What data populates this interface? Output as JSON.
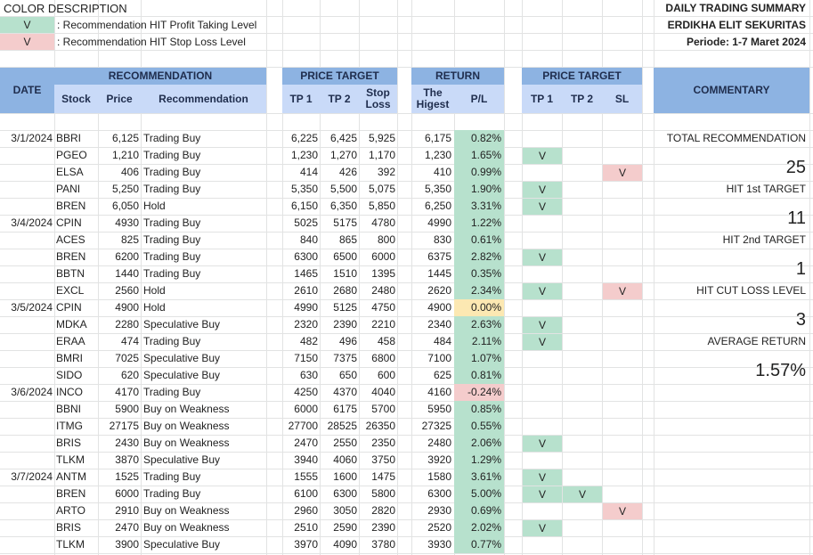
{
  "legend": {
    "title": "COLOR DESCRIPTION",
    "items": [
      {
        "symbol": "V",
        "text": ": Recommendation HIT Profit Taking Level",
        "color": "#b7e1cd"
      },
      {
        "symbol": "V",
        "text": ": Recommendation HIT Stop Loss Level",
        "color": "#f4cccc"
      }
    ]
  },
  "summary_header": {
    "title": "DAILY TRADING SUMMARY",
    "company": "ERDIKHA ELIT SEKURITAS",
    "period": "Periode:  1-7 Maret 2024"
  },
  "headers": {
    "date": "DATE",
    "recommendation_group": "RECOMMENDATION",
    "stock": "Stock",
    "price": "Price",
    "recommendation": "Recommendation",
    "price_target_group": "PRICE TARGET",
    "tp1": "TP 1",
    "tp2": "TP 2",
    "stop_loss": "Stop Loss",
    "return_group": "RETURN",
    "highest": "The Higest",
    "pl": "P/L",
    "hit_group": "PRICE TARGET",
    "hit_tp1": "TP 1",
    "hit_tp2": "TP 2",
    "hit_sl": "SL",
    "commentary": "COMMENTARY"
  },
  "rows": [
    {
      "date": "3/1/2024",
      "stock": "BBRI",
      "price": "6,125",
      "rec": "Trading Buy",
      "tp1": "6,225",
      "tp2": "6,425",
      "sl": "5,925",
      "highest": "6,175",
      "pl": "0.82%",
      "pl_class": "pos",
      "h1": "",
      "h2": "",
      "hs": ""
    },
    {
      "date": "",
      "stock": "PGEO",
      "price": "1,210",
      "rec": "Trading Buy",
      "tp1": "1,230",
      "tp2": "1,270",
      "sl": "1,170",
      "highest": "1,230",
      "pl": "1.65%",
      "pl_class": "pos",
      "h1": "V",
      "h2": "",
      "hs": ""
    },
    {
      "date": "",
      "stock": "ELSA",
      "price": "406",
      "rec": "Trading Buy",
      "tp1": "414",
      "tp2": "426",
      "sl": "392",
      "highest": "410",
      "pl": "0.99%",
      "pl_class": "pos",
      "h1": "",
      "h2": "",
      "hs": "V"
    },
    {
      "date": "",
      "stock": "PANI",
      "price": "5,250",
      "rec": "Trading Buy",
      "tp1": "5,350",
      "tp2": "5,500",
      "sl": "5,075",
      "highest": "5,350",
      "pl": "1.90%",
      "pl_class": "pos",
      "h1": "V",
      "h2": "",
      "hs": ""
    },
    {
      "date": "",
      "stock": "BREN",
      "price": "6,050",
      "rec": "Hold",
      "tp1": "6,150",
      "tp2": "6,350",
      "sl": "5,850",
      "highest": "6,250",
      "pl": "3.31%",
      "pl_class": "pos",
      "h1": "V",
      "h2": "",
      "hs": ""
    },
    {
      "date": "3/4/2024",
      "stock": "CPIN",
      "price": "4930",
      "rec": "Trading Buy",
      "tp1": "5025",
      "tp2": "5175",
      "sl": "4780",
      "highest": "4990",
      "pl": "1.22%",
      "pl_class": "pos",
      "h1": "",
      "h2": "",
      "hs": ""
    },
    {
      "date": "",
      "stock": "ACES",
      "price": "825",
      "rec": "Trading Buy",
      "tp1": "840",
      "tp2": "865",
      "sl": "800",
      "highest": "830",
      "pl": "0.61%",
      "pl_class": "pos",
      "h1": "",
      "h2": "",
      "hs": ""
    },
    {
      "date": "",
      "stock": "BREN",
      "price": "6200",
      "rec": "Trading Buy",
      "tp1": "6300",
      "tp2": "6500",
      "sl": "6000",
      "highest": "6375",
      "pl": "2.82%",
      "pl_class": "pos",
      "h1": "V",
      "h2": "",
      "hs": ""
    },
    {
      "date": "",
      "stock": "BBTN",
      "price": "1440",
      "rec": "Trading Buy",
      "tp1": "1465",
      "tp2": "1510",
      "sl": "1395",
      "highest": "1445",
      "pl": "0.35%",
      "pl_class": "pos",
      "h1": "",
      "h2": "",
      "hs": ""
    },
    {
      "date": "",
      "stock": "EXCL",
      "price": "2560",
      "rec": "Hold",
      "tp1": "2610",
      "tp2": "2680",
      "sl": "2480",
      "highest": "2620",
      "pl": "2.34%",
      "pl_class": "pos",
      "h1": "V",
      "h2": "",
      "hs": "V"
    },
    {
      "date": "3/5/2024",
      "stock": "CPIN",
      "price": "4900",
      "rec": "Hold",
      "tp1": "4990",
      "tp2": "5125",
      "sl": "4750",
      "highest": "4900",
      "pl": "0.00%",
      "pl_class": "zero",
      "h1": "",
      "h2": "",
      "hs": ""
    },
    {
      "date": "",
      "stock": "MDKA",
      "price": "2280",
      "rec": "Speculative Buy",
      "tp1": "2320",
      "tp2": "2390",
      "sl": "2210",
      "highest": "2340",
      "pl": "2.63%",
      "pl_class": "pos",
      "h1": "V",
      "h2": "",
      "hs": ""
    },
    {
      "date": "",
      "stock": "ERAA",
      "price": "474",
      "rec": "Trading Buy",
      "tp1": "482",
      "tp2": "496",
      "sl": "458",
      "highest": "484",
      "pl": "2.11%",
      "pl_class": "pos",
      "h1": "V",
      "h2": "",
      "hs": ""
    },
    {
      "date": "",
      "stock": "BMRI",
      "price": "7025",
      "rec": "Speculative Buy",
      "tp1": "7150",
      "tp2": "7375",
      "sl": "6800",
      "highest": "7100",
      "pl": "1.07%",
      "pl_class": "pos",
      "h1": "",
      "h2": "",
      "hs": ""
    },
    {
      "date": "",
      "stock": "SIDO",
      "price": "620",
      "rec": "Speculative Buy",
      "tp1": "630",
      "tp2": "650",
      "sl": "600",
      "highest": "625",
      "pl": "0.81%",
      "pl_class": "pos",
      "h1": "",
      "h2": "",
      "hs": ""
    },
    {
      "date": "3/6/2024",
      "stock": "INCO",
      "price": "4170",
      "rec": "Trading Buy",
      "tp1": "4250",
      "tp2": "4370",
      "sl": "4040",
      "highest": "4160",
      "pl": "-0.24%",
      "pl_class": "neg",
      "h1": "",
      "h2": "",
      "hs": ""
    },
    {
      "date": "",
      "stock": "BBNI",
      "price": "5900",
      "rec": "Buy on Weakness",
      "tp1": "6000",
      "tp2": "6175",
      "sl": "5700",
      "highest": "5950",
      "pl": "0.85%",
      "pl_class": "pos",
      "h1": "",
      "h2": "",
      "hs": ""
    },
    {
      "date": "",
      "stock": "ITMG",
      "price": "27175",
      "rec": "Buy on Weakness",
      "tp1": "27700",
      "tp2": "28525",
      "sl": "26350",
      "highest": "27325",
      "pl": "0.55%",
      "pl_class": "pos",
      "h1": "",
      "h2": "",
      "hs": ""
    },
    {
      "date": "",
      "stock": "BRIS",
      "price": "2430",
      "rec": "Buy on Weakness",
      "tp1": "2470",
      "tp2": "2550",
      "sl": "2350",
      "highest": "2480",
      "pl": "2.06%",
      "pl_class": "pos",
      "h1": "V",
      "h2": "",
      "hs": ""
    },
    {
      "date": "",
      "stock": "TLKM",
      "price": "3870",
      "rec": "Speculative Buy",
      "tp1": "3940",
      "tp2": "4060",
      "sl": "3750",
      "highest": "3920",
      "pl": "1.29%",
      "pl_class": "pos",
      "h1": "",
      "h2": "",
      "hs": ""
    },
    {
      "date": "3/7/2024",
      "stock": "ANTM",
      "price": "1525",
      "rec": "Trading Buy",
      "tp1": "1555",
      "tp2": "1600",
      "sl": "1475",
      "highest": "1580",
      "pl": "3.61%",
      "pl_class": "pos",
      "h1": "V",
      "h2": "",
      "hs": ""
    },
    {
      "date": "",
      "stock": "BREN",
      "price": "6000",
      "rec": "Trading Buy",
      "tp1": "6100",
      "tp2": "6300",
      "sl": "5800",
      "highest": "6300",
      "pl": "5.00%",
      "pl_class": "pos",
      "h1": "V",
      "h2": "V",
      "hs": ""
    },
    {
      "date": "",
      "stock": "ARTO",
      "price": "2910",
      "rec": "Buy on Weakness",
      "tp1": "2960",
      "tp2": "3050",
      "sl": "2820",
      "highest": "2930",
      "pl": "0.69%",
      "pl_class": "pos",
      "h1": "",
      "h2": "",
      "hs": "V"
    },
    {
      "date": "",
      "stock": "BRIS",
      "price": "2470",
      "rec": "Buy on Weakness",
      "tp1": "2510",
      "tp2": "2590",
      "sl": "2390",
      "highest": "2520",
      "pl": "2.02%",
      "pl_class": "pos",
      "h1": "V",
      "h2": "",
      "hs": ""
    },
    {
      "date": "",
      "stock": "TLKM",
      "price": "3900",
      "rec": "Speculative Buy",
      "tp1": "3970",
      "tp2": "4090",
      "sl": "3780",
      "highest": "3930",
      "pl": "0.77%",
      "pl_class": "pos",
      "h1": "",
      "h2": "",
      "hs": ""
    }
  ],
  "commentary": {
    "total_label": "TOTAL RECOMMENDATION",
    "total_value": "25",
    "hit1_label": "HIT 1st TARGET",
    "hit1_value": "11",
    "hit2_label": "HIT 2nd TARGET",
    "hit2_value": "1",
    "cut_label": "HIT CUT LOSS LEVEL",
    "cut_value": "3",
    "avg_label": "AVERAGE RETURN",
    "avg_value": "1.57%"
  }
}
